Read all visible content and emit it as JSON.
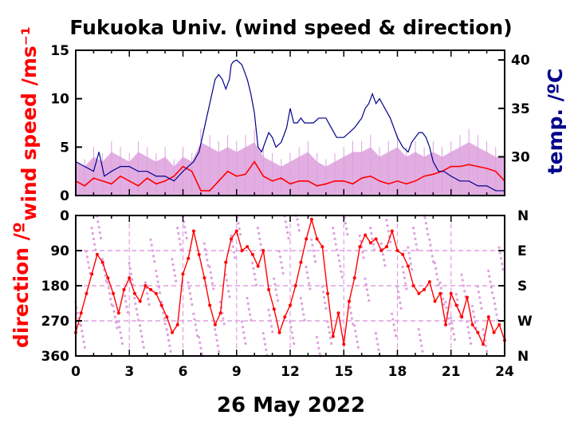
{
  "chart_data": {
    "type": "line",
    "title": "Fukuoka Univ. (wind speed & direction)",
    "date_label": "26 May 2022",
    "x_ticks": [
      "0",
      "3",
      "6",
      "9",
      "12",
      "15",
      "18",
      "21",
      "24"
    ],
    "xlim": [
      0,
      24
    ],
    "panels": [
      {
        "name": "wind-temperature",
        "ylabel_left": "wind speed /ms⁻¹",
        "ylabel_right": "temp. /ºC",
        "ylim_left": [
          0,
          15
        ],
        "ylim_right": [
          26.0,
          41.0
        ],
        "left_ticks": [
          "0",
          "5",
          "10",
          "15"
        ],
        "right_ticks": [
          "30",
          "35",
          "40"
        ],
        "series": [
          {
            "name": "",
            "kind": "gust-envelope",
            "color": "#dda0dd",
            "x": [
              0,
              0.5,
              1,
              1.5,
              2,
              2.5,
              3,
              3.5,
              4,
              4.5,
              5,
              5.5,
              6,
              6.5,
              7,
              7.5,
              8,
              8.5,
              9,
              9.5,
              10,
              10.5,
              11,
              11.5,
              12,
              12.5,
              13,
              13.5,
              14,
              14.5,
              15,
              15.5,
              16,
              16.5,
              17,
              17.5,
              18,
              18.5,
              19,
              19.5,
              20,
              20.5,
              21,
              21.5,
              22,
              22.5,
              23,
              23.5,
              24
            ],
            "values": [
              3.5,
              3.0,
              4.0,
              3.5,
              4.5,
              4.0,
              3.5,
              4.5,
              4.0,
              3.5,
              4.0,
              3.0,
              4.0,
              3.5,
              5.5,
              5.0,
              4.5,
              5.0,
              4.5,
              5.0,
              5.5,
              4.0,
              3.5,
              3.0,
              3.5,
              4.0,
              4.5,
              3.5,
              3.0,
              3.5,
              4.0,
              4.5,
              4.5,
              5.0,
              4.0,
              4.5,
              5.0,
              4.0,
              4.5,
              4.0,
              4.5,
              4.0,
              4.5,
              5.0,
              5.5,
              5.0,
              4.5,
              4.0,
              4.0
            ]
          },
          {
            "name": "",
            "kind": "mean-wind",
            "color": "#ff0000",
            "x": [
              0,
              0.5,
              1,
              1.5,
              2,
              2.5,
              3,
              3.5,
              4,
              4.5,
              5,
              5.5,
              6,
              6.5,
              7,
              7.5,
              8,
              8.5,
              9,
              9.5,
              10,
              10.5,
              11,
              11.5,
              12,
              12.5,
              13,
              13.5,
              14,
              14.5,
              15,
              15.5,
              16,
              16.5,
              17,
              17.5,
              18,
              18.5,
              19,
              19.5,
              20,
              20.5,
              21,
              21.5,
              22,
              22.5,
              23,
              23.5,
              24
            ],
            "values": [
              1.5,
              1.0,
              1.8,
              1.5,
              1.2,
              2.0,
              1.5,
              1.0,
              1.8,
              1.2,
              1.5,
              2.0,
              3.0,
              2.5,
              0.5,
              0.5,
              1.5,
              2.5,
              2.0,
              2.2,
              3.5,
              2.0,
              1.5,
              1.8,
              1.2,
              1.5,
              1.5,
              1.0,
              1.2,
              1.5,
              1.5,
              1.2,
              1.8,
              2.0,
              1.5,
              1.2,
              1.5,
              1.2,
              1.5,
              2.0,
              2.2,
              2.5,
              3.0,
              3.0,
              3.2,
              3.0,
              2.8,
              2.5,
              1.5
            ]
          },
          {
            "name": "",
            "kind": "temperature",
            "axis": "right",
            "color": "#00008b",
            "x": [
              0,
              0.5,
              1,
              1.3,
              1.6,
              2,
              2.5,
              3,
              3.5,
              4,
              4.5,
              5,
              5.5,
              6,
              6.3,
              6.6,
              6.9,
              7.2,
              7.5,
              7.8,
              8,
              8.2,
              8.4,
              8.6,
              8.7,
              8.8,
              9,
              9.3,
              9.6,
              9.8,
              10,
              10.2,
              10.4,
              10.6,
              10.8,
              11,
              11.2,
              11.5,
              11.8,
              12,
              12.2,
              12.4,
              12.6,
              12.8,
              13,
              13.3,
              13.6,
              14,
              14.3,
              14.6,
              15,
              15.3,
              15.6,
              15.8,
              16,
              16.2,
              16.4,
              16.6,
              16.8,
              17,
              17.3,
              17.6,
              18,
              18.3,
              18.6,
              18.8,
              19,
              19.2,
              19.4,
              19.6,
              19.8,
              20,
              20.3,
              20.6,
              21,
              21.5,
              22,
              22.5,
              23,
              23.5,
              24
            ],
            "values": [
              29.5,
              29.0,
              28.5,
              30.5,
              28.0,
              28.5,
              29.0,
              29.0,
              28.5,
              28.5,
              28.0,
              28.0,
              27.5,
              28.5,
              29.0,
              29.5,
              30.5,
              33.0,
              35.5,
              38.0,
              38.5,
              38.0,
              37.0,
              38.0,
              39.5,
              39.8,
              40.0,
              39.5,
              38.0,
              36.5,
              34.5,
              31.0,
              30.5,
              31.5,
              32.5,
              32.0,
              31.0,
              31.5,
              33.0,
              35.0,
              33.5,
              33.5,
              34.0,
              33.5,
              33.5,
              33.5,
              34.0,
              34.0,
              33.0,
              32.0,
              32.0,
              32.5,
              33.0,
              33.5,
              34.0,
              35.0,
              35.5,
              36.5,
              35.5,
              36.0,
              35.0,
              34.0,
              32.0,
              31.0,
              30.5,
              31.5,
              32.0,
              32.5,
              32.5,
              32.0,
              31.0,
              29.5,
              28.5,
              28.5,
              28.0,
              27.5,
              27.5,
              27.0,
              27.0,
              26.5,
              26.5
            ]
          }
        ]
      },
      {
        "name": "direction",
        "ylabel_left": "direction /º",
        "ylim": [
          0,
          360
        ],
        "inverted": true,
        "left_ticks": [
          "0",
          "90",
          "180",
          "270",
          "360"
        ],
        "right_ticks": [
          "N",
          "E",
          "S",
          "W",
          "N"
        ],
        "gridlines": [
          90,
          180,
          270
        ],
        "series": [
          {
            "name": "",
            "kind": "direction-scatter-light",
            "color": "#dda0dd",
            "x": [
              0.1,
              0.4,
              0.7,
              1.0,
              1.3,
              1.6,
              1.9,
              2.2,
              2.5,
              2.8,
              3.1,
              3.4,
              3.7,
              4.0,
              4.3,
              4.6,
              4.9,
              5.2,
              5.5,
              5.8,
              6.1,
              6.4,
              6.7,
              7.0,
              7.3,
              7.6,
              7.9,
              8.2,
              8.5,
              8.8,
              9.1,
              9.4,
              9.7,
              10.0,
              10.3,
              10.6,
              10.9,
              11.2,
              11.5,
              11.8,
              12.1,
              12.4,
              12.7,
              13.0,
              13.3,
              13.6,
              13.9,
              14.2,
              14.5,
              14.8,
              15.1,
              15.4,
              15.7,
              16.0,
              16.3,
              16.6,
              16.9,
              17.2,
              17.5,
              17.8,
              18.1,
              18.4,
              18.7,
              19.0,
              19.3,
              19.6,
              19.9,
              20.2,
              20.5,
              20.8,
              21.1,
              21.4,
              21.7,
              22.0,
              22.3,
              22.6,
              22.9,
              23.2,
              23.5,
              23.8
            ],
            "values": [
              250,
              310,
              120,
              60,
              30,
              140,
              200,
              260,
              300,
              220,
              150,
              240,
              310,
              200,
              90,
              170,
              250,
              320,
              140,
              60,
              30,
              200,
              280,
              340,
              100,
              160,
              320,
              250,
              180,
              80,
              20,
              300,
              240,
              150,
              60,
              330,
              270,
              190,
              120,
              30,
              300,
              10,
              240,
              160,
              90,
              340,
              210,
              300,
              60,
              130,
              20,
              250,
              310,
              80,
              190,
              60,
              330,
              100,
              40,
              280,
              210,
              160,
              110,
              60,
              320,
              20,
              90,
              150,
              200,
              250,
              290,
              230,
              180,
              300,
              260,
              210,
              320,
              170,
              240,
              110
            ]
          },
          {
            "name": "",
            "kind": "direction-trace",
            "color": "#ff0000",
            "x": [
              0,
              0.3,
              0.6,
              0.9,
              1.2,
              1.5,
              1.8,
              2.1,
              2.4,
              2.7,
              3.0,
              3.3,
              3.6,
              3.9,
              4.2,
              4.5,
              4.8,
              5.1,
              5.4,
              5.7,
              6.0,
              6.3,
              6.6,
              6.9,
              7.2,
              7.5,
              7.8,
              8.1,
              8.4,
              8.7,
              9.0,
              9.3,
              9.6,
              9.9,
              10.2,
              10.5,
              10.8,
              11.1,
              11.4,
              11.7,
              12.0,
              12.3,
              12.6,
              12.9,
              13.2,
              13.5,
              13.8,
              14.1,
              14.4,
              14.7,
              15.0,
              15.3,
              15.6,
              15.9,
              16.2,
              16.5,
              16.8,
              17.1,
              17.4,
              17.7,
              18.0,
              18.3,
              18.6,
              18.9,
              19.2,
              19.5,
              19.8,
              20.1,
              20.4,
              20.7,
              21.0,
              21.3,
              21.6,
              21.9,
              22.2,
              22.5,
              22.8,
              23.1,
              23.4,
              23.7,
              24.0
            ],
            "values": [
              300,
              250,
              200,
              150,
              100,
              120,
              160,
              200,
              250,
              190,
              160,
              200,
              220,
              180,
              190,
              200,
              230,
              260,
              300,
              280,
              150,
              110,
              40,
              100,
              160,
              230,
              280,
              250,
              120,
              60,
              40,
              90,
              80,
              100,
              130,
              90,
              190,
              240,
              300,
              260,
              230,
              180,
              120,
              60,
              10,
              60,
              80,
              200,
              310,
              250,
              330,
              220,
              160,
              80,
              50,
              70,
              60,
              90,
              80,
              40,
              90,
              100,
              130,
              180,
              200,
              190,
              170,
              220,
              200,
              280,
              200,
              230,
              260,
              210,
              280,
              300,
              330,
              260,
              300,
              280,
              320
            ]
          }
        ]
      }
    ]
  }
}
